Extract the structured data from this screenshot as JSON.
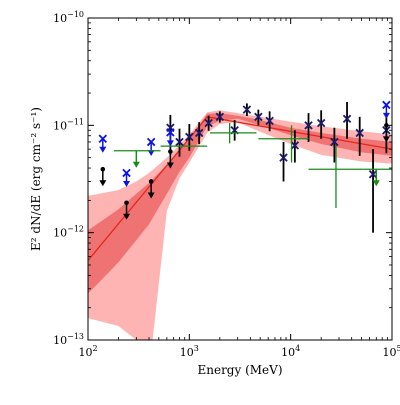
{
  "chart_data": {
    "type": "scatter",
    "title": "",
    "xlabel": "Energy (MeV)",
    "ylabel": "E² dN/dE (erg cm⁻² s⁻¹)",
    "x_scale": "log",
    "y_scale": "log",
    "xlim": [
      100,
      100000
    ],
    "ylim": [
      1e-13,
      1e-10
    ],
    "x_ticks": [
      {
        "value": 100,
        "base": "10",
        "exp": "2"
      },
      {
        "value": 1000,
        "base": "10",
        "exp": "3"
      },
      {
        "value": 10000,
        "base": "10",
        "exp": "4"
      },
      {
        "value": 100000,
        "base": "10",
        "exp": "5"
      }
    ],
    "y_ticks": [
      {
        "value": 1e-13,
        "base": "10",
        "exp": "−13"
      },
      {
        "value": 1e-12,
        "base": "10",
        "exp": "−12"
      },
      {
        "value": 1e-11,
        "base": "10",
        "exp": "−11"
      },
      {
        "value": 1e-10,
        "base": "10",
        "exp": "−10"
      }
    ],
    "colors": {
      "model_line": "#e8261b",
      "band_inner": "#f07373",
      "band_outer": "#ffb4b4",
      "points_navy": "#1a1a6e",
      "points_blue": "#0a14e6",
      "points_green": "#1a8a1a",
      "points_black": "#000000"
    },
    "model_line": {
      "x": [
        100,
        1500,
        100000
      ],
      "y": [
        5.5e-13,
        1.2e-11,
        6e-12
      ]
    },
    "band_outer": {
      "x": [
        100,
        200,
        300,
        400,
        600,
        800,
        1000,
        1500,
        2000,
        3000,
        5000,
        10000,
        20000,
        50000,
        100000
      ],
      "upper": [
        2.2e-12,
        2.5e-12,
        3e-12,
        3.6e-12,
        5e-12,
        6.6e-12,
        8.2e-12,
        1.32e-11,
        1.38e-11,
        1.3e-11,
        1.2e-11,
        1.08e-11,
        9.8e-12,
        8.8e-12,
        8.2e-12
      ],
      "lower": [
        1.6e-13,
        1.35e-13,
        1e-13,
        5e-14,
        1.6e-12,
        3.2e-12,
        4.5e-12,
        8.5e-12,
        1.03e-11,
        1.07e-11,
        8.7e-12,
        6.7e-12,
        5.3e-12,
        4.6e-12,
        4.4e-12
      ]
    },
    "band_inner": {
      "x": [
        100,
        200,
        300,
        400,
        600,
        800,
        1000,
        1500,
        2000,
        3000,
        5000,
        10000,
        20000,
        50000,
        100000
      ],
      "upper": [
        1.05e-12,
        1.65e-12,
        2.3e-12,
        2.9e-12,
        4.3e-12,
        5.9e-12,
        7.3e-12,
        1.28e-11,
        1.3e-11,
        1.23e-11,
        1.12e-11,
        9.5e-12,
        8.5e-12,
        7.5e-12,
        7e-12
      ],
      "lower": [
        2.7e-13,
        5.3e-13,
        8.5e-13,
        1.2e-12,
        2.3e-12,
        3.7e-12,
        5e-12,
        9.8e-12,
        1.1e-11,
        1.15e-11,
        1e-11,
        8.1e-12,
        6.7e-12,
        5.6e-12,
        5.2e-12
      ]
    },
    "series": [
      {
        "marker": "x",
        "color_key": "points_navy",
        "points": [
          {
            "x": 650,
            "y": 9.5e-12,
            "ylo": 5.3e-12,
            "yhi": 1.25e-11
          },
          {
            "x": 800,
            "y": 7e-12,
            "ylo": 5.1e-12,
            "yhi": 9.3e-12
          },
          {
            "x": 1000,
            "y": 7.8e-12,
            "ylo": 5.8e-12,
            "yhi": 1.03e-11
          },
          {
            "x": 1250,
            "y": 8.5e-12,
            "ylo": 6.7e-12,
            "yhi": 1.07e-11
          },
          {
            "x": 1550,
            "y": 1.05e-11,
            "ylo": 8.9e-12,
            "yhi": 1.23e-11
          },
          {
            "x": 2000,
            "y": 1.2e-11,
            "ylo": 1.06e-11,
            "yhi": 1.35e-11
          },
          {
            "x": 2800,
            "y": 9e-12,
            "ylo": 7.2e-12,
            "yhi": 1.12e-11
          },
          {
            "x": 3700,
            "y": 1.4e-11,
            "ylo": 1.22e-11,
            "yhi": 1.6e-11
          },
          {
            "x": 4800,
            "y": 1.2e-11,
            "ylo": 1e-11,
            "yhi": 1.4e-11
          },
          {
            "x": 6200,
            "y": 1.1e-11,
            "ylo": 8.8e-12,
            "yhi": 1.35e-11
          },
          {
            "x": 8500,
            "y": 5e-12,
            "ylo": 3e-12,
            "yhi": 7e-12
          },
          {
            "x": 11000,
            "y": 6.5e-12,
            "ylo": 4.5e-12,
            "yhi": 9e-12
          },
          {
            "x": 15000,
            "y": 1e-11,
            "ylo": 7e-12,
            "yhi": 1.3e-11
          },
          {
            "x": 20000,
            "y": 1.05e-11,
            "ylo": 7.5e-12,
            "yhi": 1.38e-11
          },
          {
            "x": 27000,
            "y": 7e-12,
            "ylo": 4.5e-12,
            "yhi": 9.5e-12
          },
          {
            "x": 36000,
            "y": 1.15e-11,
            "ylo": 7.5e-12,
            "yhi": 1.65e-11
          },
          {
            "x": 48000,
            "y": 8.5e-12,
            "ylo": 5.2e-12,
            "yhi": 1.2e-11
          },
          {
            "x": 65000,
            "y": 3.5e-12,
            "ylo": 1e-12,
            "yhi": 6e-12
          },
          {
            "x": 88000,
            "y": 9e-12,
            "ylo": 5.5e-12,
            "yhi": 1.25e-11
          }
        ]
      },
      {
        "marker": "x",
        "color_key": "points_blue",
        "upper_limit_arrow": true,
        "points": [
          {
            "x": 140,
            "y": 7.5e-12
          },
          {
            "x": 240,
            "y": 3.6e-12
          },
          {
            "x": 420,
            "y": 7e-12
          },
          {
            "x": 650,
            "y": 8.6e-12
          },
          {
            "x": 88000,
            "y": 1.55e-11
          }
        ]
      },
      {
        "marker": "dot",
        "color_key": "points_black",
        "upper_limit_arrow": true,
        "points": [
          {
            "x": 140,
            "y": 3.9e-12
          },
          {
            "x": 240,
            "y": 1.9e-12
          },
          {
            "x": 420,
            "y": 3e-12
          },
          {
            "x": 650,
            "y": 5.7e-12
          },
          {
            "x": 88000,
            "y": 1e-11
          }
        ]
      },
      {
        "marker": "hbar",
        "color_key": "points_green",
        "points": [
          {
            "x": 300,
            "xlo": 180,
            "xhi": 520,
            "y": 5.8e-12,
            "upper_limit_arrow": true
          },
          {
            "x": 1020,
            "xlo": 520,
            "xhi": 1500,
            "y": 6.4e-12
          },
          {
            "x": 2500,
            "xlo": 1600,
            "xhi": 4600,
            "y": 8.5e-12,
            "ylo": 6.8e-12,
            "yhi": 1.05e-11
          },
          {
            "x": 10200,
            "xlo": 4800,
            "xhi": 15000,
            "y": 7.5e-12,
            "ylo": 4.5e-12,
            "yhi": 1e-11
          },
          {
            "x": 28000,
            "xlo": 15000,
            "xhi": 52000,
            "y": 3.9e-12,
            "ylo": 1.7e-12,
            "yhi": 6.5e-12
          },
          {
            "x": 70000,
            "xlo": 52000,
            "xhi": 100000,
            "y": 3.9e-12,
            "upper_limit_arrow": true
          }
        ]
      }
    ]
  }
}
